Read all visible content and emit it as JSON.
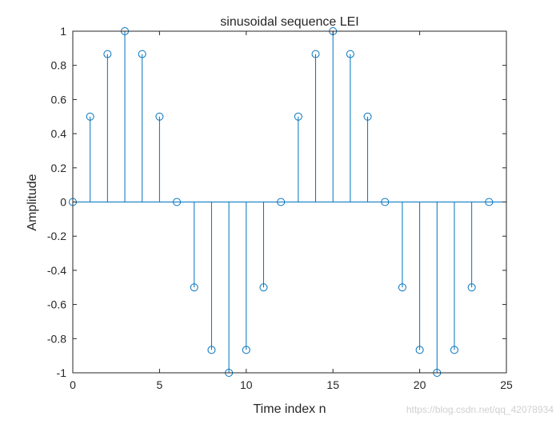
{
  "chart_data": {
    "type": "stem",
    "title": "sinusoidal sequence LEI",
    "xlabel": "Time index n",
    "ylabel": "Amplitude",
    "xlim": [
      0,
      25
    ],
    "ylim": [
      -1,
      1
    ],
    "xticks": [
      0,
      5,
      10,
      15,
      20,
      25
    ],
    "xtick_labels": [
      "0",
      "5",
      "10",
      "15",
      "20",
      "25"
    ],
    "yticks": [
      -1,
      -0.8,
      -0.6,
      -0.4,
      -0.2,
      0,
      0.2,
      0.4,
      0.6,
      0.8,
      1
    ],
    "ytick_labels": [
      "-1",
      "-0.8",
      "-0.6",
      "-0.4",
      "-0.2",
      "0",
      "0.2",
      "0.4",
      "0.6",
      "0.8",
      "1"
    ],
    "grid": false,
    "series_color": "#0072BD",
    "x": [
      0,
      1,
      2,
      3,
      4,
      5,
      6,
      7,
      8,
      9,
      10,
      11,
      12,
      13,
      14,
      15,
      16,
      17,
      18,
      19,
      20,
      21,
      22,
      23,
      24
    ],
    "y": [
      0,
      0.5,
      0.866,
      1,
      0.866,
      0.5,
      0,
      -0.5,
      -0.866,
      -1,
      -0.866,
      -0.5,
      0,
      0.5,
      0.866,
      1,
      0.866,
      0.5,
      0,
      -0.5,
      -0.866,
      -1,
      -0.866,
      -0.5,
      0
    ]
  },
  "watermark": "https://blog.csdn.net/qq_42078934"
}
